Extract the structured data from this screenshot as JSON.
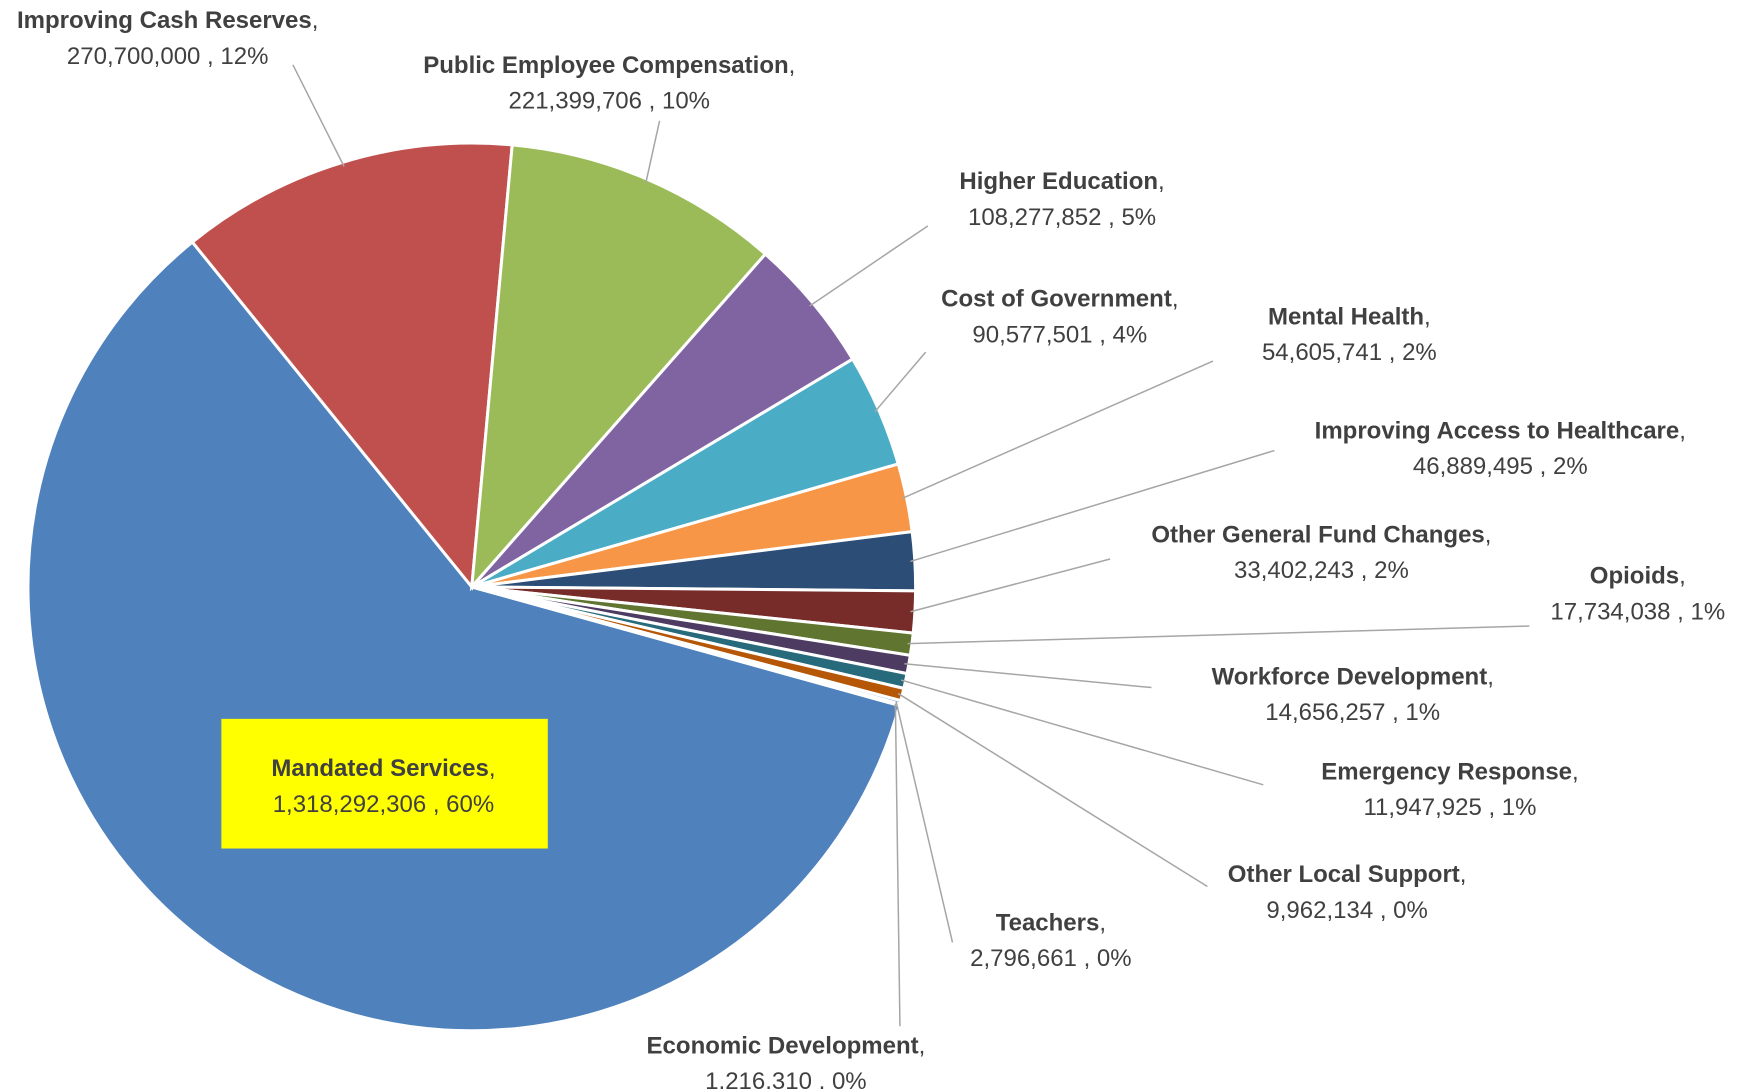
{
  "chart_data": {
    "type": "pie",
    "categories": [
      "Mandated Services",
      "Improving Cash Reserves",
      "Public Employee Compensation",
      "Higher Education",
      "Cost of Government",
      "Mental Health",
      "Improving Access to Healthcare",
      "Other General Fund Changes",
      "Opioids",
      "Workforce Development",
      "Emergency Response",
      "Other Local Support",
      "Teachers",
      "Economic Development"
    ],
    "values": [
      1318292306,
      270700000,
      221399706,
      108277852,
      90577501,
      54605741,
      46889495,
      33402243,
      17734038,
      14656257,
      11947925,
      9962134,
      2796661,
      1216310
    ],
    "value_labels": [
      "1,318,292,306 , 60%",
      "270,700,000 , 12%",
      "221,399,706 , 10%",
      "108,277,852 , 5%",
      "90,577,501 , 4%",
      "54,605,741 , 2%",
      "46,889,495 , 2%",
      "33,402,243 , 2%",
      "17,734,038 , 1%",
      "14,656,257 , 1%",
      "11,947,925 , 1%",
      "9,962,134 , 0%",
      "2,796,661 , 0%",
      "1,216,310 , 0%"
    ],
    "label_separator": ",",
    "colors": [
      "#4f81bd",
      "#c0504d",
      "#9bbb59",
      "#8064a2",
      "#4bacc6",
      "#f79646",
      "#2c4d75",
      "#772c2a",
      "#5f7530",
      "#4d3b62",
      "#276a7c",
      "#b65708",
      "#729aca",
      "#cd7371"
    ],
    "start_angle": 105.5,
    "highlight_color": "#ffff00"
  }
}
